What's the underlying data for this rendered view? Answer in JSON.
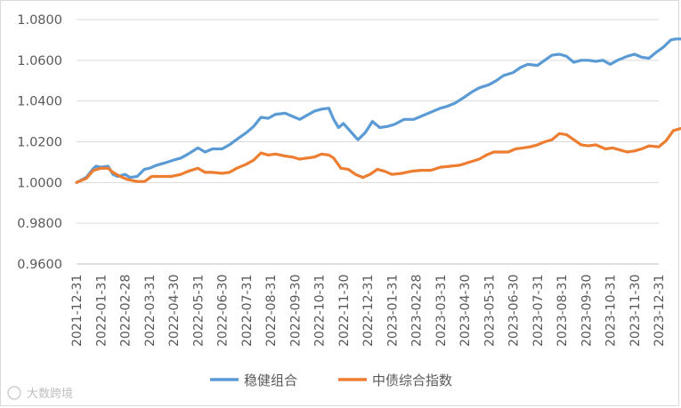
{
  "chart_data": {
    "type": "line",
    "title": "",
    "xlabel": "",
    "ylabel": "",
    "ylim": [
      0.96,
      1.08
    ],
    "yticks": [
      "1.0800",
      "1.0600",
      "1.0400",
      "1.0200",
      "1.0000",
      "0.9800",
      "0.9600"
    ],
    "x_labels": [
      "2021-12-31",
      "2022-01-31",
      "2022-02-28",
      "2022-03-31",
      "2022-04-30",
      "2022-05-31",
      "2022-06-30",
      "2022-07-31",
      "2022-08-31",
      "2022-09-30",
      "2022-10-31",
      "2022-11-30",
      "2022-12-31",
      "2023-01-31",
      "2023-02-28",
      "2023-03-31",
      "2023-04-30",
      "2023-05-31",
      "2023-06-30",
      "2023-07-31",
      "2023-08-31",
      "2023-09-30",
      "2023-10-31",
      "2023-11-30",
      "2023-12-31"
    ],
    "grid": "horizontal",
    "legend_position": "bottom",
    "series": [
      {
        "name": "稳健组合",
        "color": "#5b9bd5",
        "values": [
          [
            0.0,
            1.0
          ],
          [
            0.4,
            1.0025
          ],
          [
            0.7,
            1.007
          ],
          [
            0.8,
            1.008
          ],
          [
            1.0,
            1.0075
          ],
          [
            1.3,
            1.008
          ],
          [
            1.5,
            1.004
          ],
          [
            1.7,
            1.003
          ],
          [
            2.0,
            1.004
          ],
          [
            2.2,
            1.0025
          ],
          [
            2.5,
            1.003
          ],
          [
            2.8,
            1.0065
          ],
          [
            3.0,
            1.007
          ],
          [
            3.3,
            1.0085
          ],
          [
            3.6,
            1.0095
          ],
          [
            4.0,
            1.011
          ],
          [
            4.3,
            1.012
          ],
          [
            4.6,
            1.014
          ],
          [
            5.0,
            1.017
          ],
          [
            5.3,
            1.015
          ],
          [
            5.6,
            1.0165
          ],
          [
            6.0,
            1.0165
          ],
          [
            6.3,
            1.0185
          ],
          [
            6.7,
            1.022
          ],
          [
            7.0,
            1.0245
          ],
          [
            7.3,
            1.0275
          ],
          [
            7.6,
            1.032
          ],
          [
            7.9,
            1.0315
          ],
          [
            8.2,
            1.0335
          ],
          [
            8.6,
            1.034
          ],
          [
            8.9,
            1.0325
          ],
          [
            9.2,
            1.031
          ],
          [
            9.5,
            1.033
          ],
          [
            9.8,
            1.035
          ],
          [
            10.1,
            1.036
          ],
          [
            10.4,
            1.0365
          ],
          [
            10.6,
            1.031
          ],
          [
            10.8,
            1.027
          ],
          [
            11.0,
            1.029
          ],
          [
            11.3,
            1.025
          ],
          [
            11.6,
            1.021
          ],
          [
            11.9,
            1.0245
          ],
          [
            12.2,
            1.03
          ],
          [
            12.5,
            1.027
          ],
          [
            12.8,
            1.0275
          ],
          [
            13.1,
            1.0285
          ],
          [
            13.5,
            1.031
          ],
          [
            13.9,
            1.031
          ],
          [
            14.2,
            1.0325
          ],
          [
            14.6,
            1.0345
          ],
          [
            15.0,
            1.0365
          ],
          [
            15.3,
            1.0375
          ],
          [
            15.6,
            1.039
          ],
          [
            16.0,
            1.042
          ],
          [
            16.3,
            1.0445
          ],
          [
            16.6,
            1.0465
          ],
          [
            17.0,
            1.048
          ],
          [
            17.3,
            1.05
          ],
          [
            17.6,
            1.0525
          ],
          [
            18.0,
            1.054
          ],
          [
            18.3,
            1.0565
          ],
          [
            18.6,
            1.058
          ],
          [
            19.0,
            1.0575
          ],
          [
            19.3,
            1.06
          ],
          [
            19.6,
            1.0625
          ],
          [
            19.9,
            1.063
          ],
          [
            20.2,
            1.062
          ],
          [
            20.5,
            1.059
          ],
          [
            20.8,
            1.06
          ],
          [
            21.1,
            1.06
          ],
          [
            21.4,
            1.0595
          ],
          [
            21.7,
            1.06
          ],
          [
            22.0,
            1.058
          ],
          [
            22.3,
            1.06
          ],
          [
            22.7,
            1.062
          ],
          [
            23.0,
            1.063
          ],
          [
            23.3,
            1.0615
          ],
          [
            23.6,
            1.061
          ],
          [
            23.9,
            1.064
          ],
          [
            24.2,
            1.0665
          ],
          [
            24.5,
            1.07
          ],
          [
            24.7,
            1.0705
          ],
          [
            24.9,
            1.0705
          ]
        ]
      },
      {
        "name": "中债综合指数",
        "color": "#ed7d31",
        "values": [
          [
            0.0,
            1.0
          ],
          [
            0.4,
            1.002
          ],
          [
            0.7,
            1.006
          ],
          [
            1.0,
            1.007
          ],
          [
            1.3,
            1.007
          ],
          [
            1.5,
            1.005
          ],
          [
            1.8,
            1.003
          ],
          [
            2.1,
            1.0015
          ],
          [
            2.5,
            1.0005
          ],
          [
            2.8,
            1.0005
          ],
          [
            3.1,
            1.003
          ],
          [
            3.5,
            1.003
          ],
          [
            3.9,
            1.003
          ],
          [
            4.3,
            1.004
          ],
          [
            4.6,
            1.0055
          ],
          [
            5.0,
            1.007
          ],
          [
            5.3,
            1.005
          ],
          [
            5.6,
            1.005
          ],
          [
            6.0,
            1.0045
          ],
          [
            6.3,
            1.005
          ],
          [
            6.6,
            1.007
          ],
          [
            7.0,
            1.009
          ],
          [
            7.3,
            1.011
          ],
          [
            7.6,
            1.0145
          ],
          [
            7.9,
            1.0135
          ],
          [
            8.2,
            1.014
          ],
          [
            8.6,
            1.013
          ],
          [
            8.9,
            1.0125
          ],
          [
            9.2,
            1.0115
          ],
          [
            9.5,
            1.012
          ],
          [
            9.8,
            1.0125
          ],
          [
            10.1,
            1.014
          ],
          [
            10.4,
            1.0135
          ],
          [
            10.6,
            1.012
          ],
          [
            10.9,
            1.007
          ],
          [
            11.2,
            1.0065
          ],
          [
            11.5,
            1.004
          ],
          [
            11.8,
            1.0025
          ],
          [
            12.1,
            1.004
          ],
          [
            12.4,
            1.0065
          ],
          [
            12.7,
            1.0055
          ],
          [
            13.0,
            1.004
          ],
          [
            13.4,
            1.0045
          ],
          [
            13.8,
            1.0055
          ],
          [
            14.2,
            1.006
          ],
          [
            14.6,
            1.006
          ],
          [
            15.0,
            1.0075
          ],
          [
            15.4,
            1.008
          ],
          [
            15.8,
            1.0085
          ],
          [
            16.2,
            1.01
          ],
          [
            16.6,
            1.0115
          ],
          [
            16.9,
            1.0135
          ],
          [
            17.2,
            1.015
          ],
          [
            17.5,
            1.015
          ],
          [
            17.8,
            1.015
          ],
          [
            18.1,
            1.0165
          ],
          [
            18.4,
            1.017
          ],
          [
            18.7,
            1.0175
          ],
          [
            19.0,
            1.0185
          ],
          [
            19.3,
            1.02
          ],
          [
            19.6,
            1.021
          ],
          [
            19.9,
            1.024
          ],
          [
            20.2,
            1.0235
          ],
          [
            20.5,
            1.021
          ],
          [
            20.8,
            1.0185
          ],
          [
            21.1,
            1.018
          ],
          [
            21.4,
            1.0185
          ],
          [
            21.8,
            1.0165
          ],
          [
            22.1,
            1.017
          ],
          [
            22.4,
            1.016
          ],
          [
            22.7,
            1.015
          ],
          [
            23.0,
            1.0155
          ],
          [
            23.3,
            1.0165
          ],
          [
            23.6,
            1.018
          ],
          [
            24.0,
            1.0175
          ],
          [
            24.3,
            1.0205
          ],
          [
            24.6,
            1.0255
          ],
          [
            24.9,
            1.0265
          ]
        ]
      }
    ]
  },
  "watermark": "大数跨境"
}
